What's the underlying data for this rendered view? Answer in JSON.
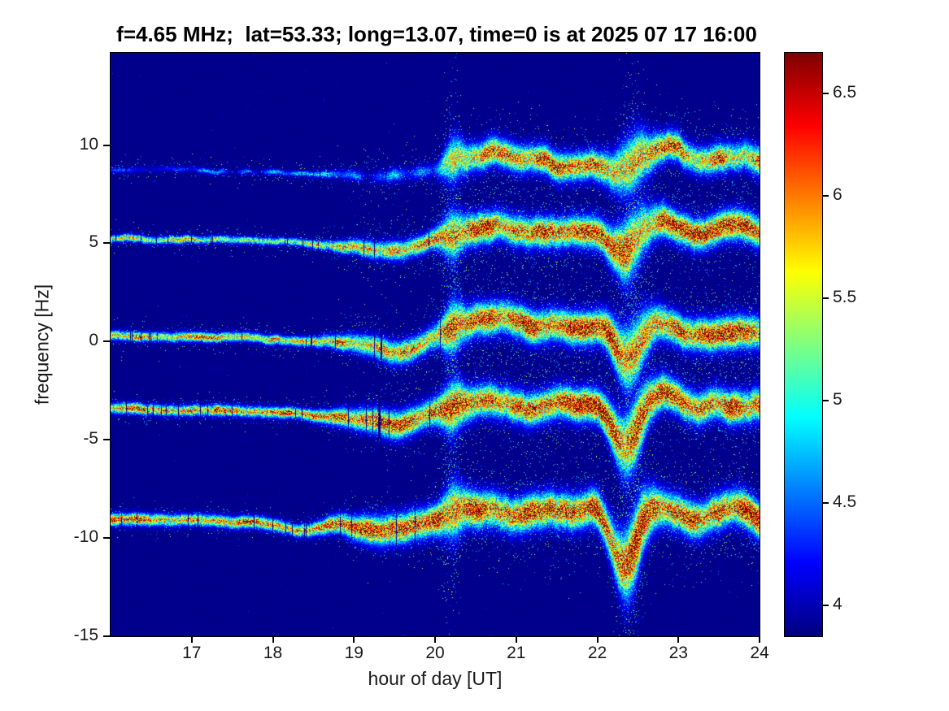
{
  "chart_data": {
    "type": "heatmap",
    "subtype": "doppler-spectrogram",
    "title": "f=4.65 MHz;  lat=53.33; long=13.07, time=0 is at 2025 07 17 16:00",
    "xlabel": "hour of day [UT]",
    "ylabel": "frequency [Hz]",
    "xlim": [
      16,
      24
    ],
    "ylim": [
      -15,
      14.7
    ],
    "x_ticks": [
      17,
      18,
      19,
      20,
      21,
      22,
      23,
      24
    ],
    "y_ticks": [
      -15,
      -10,
      -5,
      0,
      5,
      10
    ],
    "colormap": "jet",
    "color_axis": [
      3.85,
      6.7
    ],
    "colorbar_ticks": [
      4,
      4.5,
      5,
      5.5,
      6,
      6.5
    ],
    "background_value": 3.9,
    "transition_hour": 20.0,
    "plume_hours": [
      20.2,
      22.42
    ],
    "station_params": {
      "f_MHz": 4.65,
      "lat": 53.33,
      "long": 13.07,
      "time_zero": "2025 07 17 16:00"
    },
    "traces": [
      {
        "name": "doppler-line-+9Hz",
        "seed": 1,
        "peak_early": 4.55,
        "peak_late": 6.15,
        "spread_early": 0.08,
        "spread_late": 0.42,
        "halo": 1.1,
        "speckle": 0.6,
        "points": [
          [
            16,
            8.8
          ],
          [
            17,
            8.75
          ],
          [
            18,
            8.6
          ],
          [
            18.8,
            8.5
          ],
          [
            19.3,
            8.4
          ],
          [
            19.8,
            8.6
          ],
          [
            20.2,
            9.1
          ],
          [
            20.7,
            9.5
          ],
          [
            21.0,
            9.2
          ],
          [
            21.3,
            9.4
          ],
          [
            21.6,
            9.0
          ],
          [
            21.9,
            9.2
          ],
          [
            22.3,
            8.8
          ],
          [
            22.6,
            9.6
          ],
          [
            22.9,
            10.0
          ],
          [
            23.2,
            9.1
          ],
          [
            23.5,
            9.3
          ],
          [
            23.8,
            9.5
          ],
          [
            24,
            9.2
          ]
        ]
      },
      {
        "name": "doppler-line-+5Hz",
        "seed": 2,
        "peak_early": 5.75,
        "peak_late": 6.35,
        "spread_early": 0.11,
        "spread_late": 0.45,
        "halo": 1.15,
        "speckle": 1.0,
        "points": [
          [
            16,
            5.25
          ],
          [
            17,
            5.2
          ],
          [
            18,
            5.1
          ],
          [
            18.6,
            4.9
          ],
          [
            19.2,
            4.75
          ],
          [
            19.6,
            4.7
          ],
          [
            20.0,
            5.2
          ],
          [
            20.4,
            5.6
          ],
          [
            20.8,
            5.7
          ],
          [
            21.2,
            5.5
          ],
          [
            21.6,
            5.6
          ],
          [
            22.0,
            5.4
          ],
          [
            22.3,
            4.6
          ],
          [
            22.6,
            5.9
          ],
          [
            22.85,
            6.3
          ],
          [
            23.1,
            5.8
          ],
          [
            23.4,
            5.6
          ],
          [
            23.7,
            5.9
          ],
          [
            24,
            5.6
          ]
        ]
      },
      {
        "name": "doppler-line-0Hz",
        "seed": 3,
        "peak_early": 6.05,
        "peak_late": 6.55,
        "spread_early": 0.14,
        "spread_late": 0.48,
        "halo": 1.3,
        "speckle": 1.0,
        "points": [
          [
            16,
            0.3
          ],
          [
            17,
            0.25
          ],
          [
            18,
            0.15
          ],
          [
            18.6,
            0.0
          ],
          [
            19.2,
            -0.2
          ],
          [
            19.6,
            -0.5
          ],
          [
            20.0,
            0.3
          ],
          [
            20.4,
            0.9
          ],
          [
            20.8,
            1.1
          ],
          [
            21.2,
            0.8
          ],
          [
            21.5,
            1.0
          ],
          [
            21.8,
            0.7
          ],
          [
            22.1,
            0.4
          ],
          [
            22.35,
            -1.0
          ],
          [
            22.6,
            0.3
          ],
          [
            22.8,
            0.9
          ],
          [
            23.1,
            0.4
          ],
          [
            23.5,
            0.5
          ],
          [
            23.8,
            0.6
          ],
          [
            24,
            0.4
          ]
        ]
      },
      {
        "name": "doppler-line--3.5Hz",
        "seed": 4,
        "peak_early": 6.2,
        "peak_late": 6.55,
        "spread_early": 0.16,
        "spread_late": 0.48,
        "halo": 1.3,
        "speckle": 1.0,
        "points": [
          [
            16,
            -3.4
          ],
          [
            17,
            -3.5
          ],
          [
            18,
            -3.6
          ],
          [
            18.6,
            -3.8
          ],
          [
            19.2,
            -4.0
          ],
          [
            19.6,
            -4.2
          ],
          [
            20.0,
            -3.5
          ],
          [
            20.4,
            -3.1
          ],
          [
            20.8,
            -3.0
          ],
          [
            21.2,
            -3.3
          ],
          [
            21.6,
            -3.1
          ],
          [
            22.0,
            -3.4
          ],
          [
            22.35,
            -5.3
          ],
          [
            22.6,
            -3.4
          ],
          [
            22.85,
            -2.7
          ],
          [
            23.1,
            -3.3
          ],
          [
            23.4,
            -3.1
          ],
          [
            23.7,
            -3.2
          ],
          [
            24,
            -3.2
          ]
        ]
      },
      {
        "name": "doppler-line--9Hz",
        "seed": 5,
        "peak_early": 6.3,
        "peak_late": 6.6,
        "spread_early": 0.18,
        "spread_late": 0.52,
        "halo": 1.4,
        "speckle": 1.1,
        "points": [
          [
            16,
            -9.0
          ],
          [
            17,
            -9.1
          ],
          [
            17.8,
            -9.2
          ],
          [
            18.4,
            -9.6
          ],
          [
            18.8,
            -9.3
          ],
          [
            19.3,
            -9.6
          ],
          [
            19.7,
            -9.4
          ],
          [
            20.1,
            -8.9
          ],
          [
            20.5,
            -8.6
          ],
          [
            20.9,
            -8.8
          ],
          [
            21.3,
            -8.5
          ],
          [
            21.7,
            -8.8
          ],
          [
            22.0,
            -8.7
          ],
          [
            22.35,
            -11.3
          ],
          [
            22.6,
            -9.0
          ],
          [
            22.9,
            -8.6
          ],
          [
            23.2,
            -8.9
          ],
          [
            23.6,
            -8.4
          ],
          [
            24,
            -8.9
          ]
        ]
      }
    ]
  }
}
